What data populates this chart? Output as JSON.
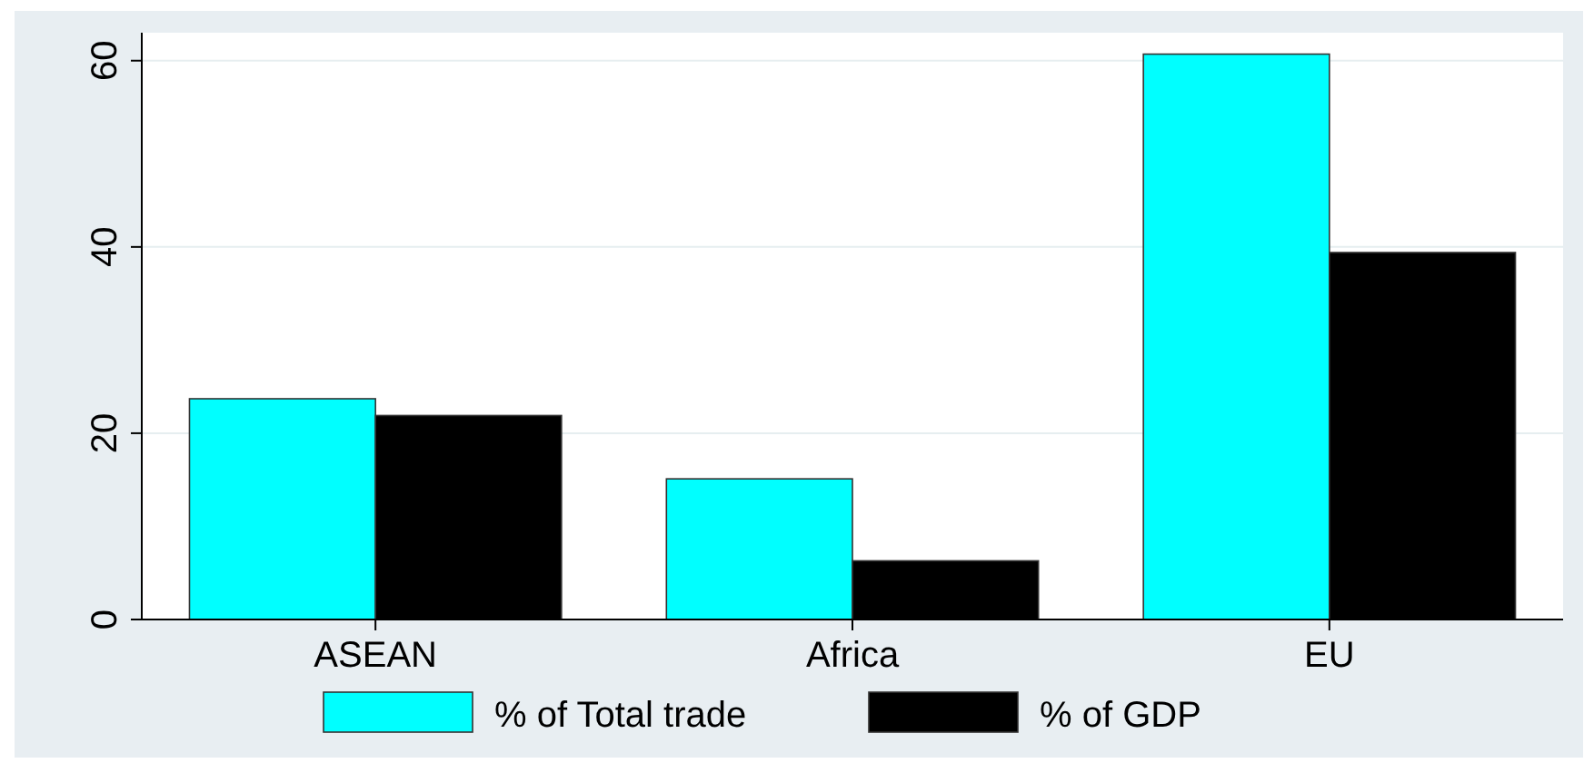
{
  "chart_data": {
    "type": "bar",
    "categories": [
      "ASEAN",
      "Africa",
      "EU"
    ],
    "series": [
      {
        "name": "% of Total trade",
        "color": "#00ffff",
        "values": [
          23.7,
          15.1,
          60.7
        ]
      },
      {
        "name": "% of GDP",
        "color": "#000000",
        "values": [
          21.9,
          6.3,
          39.4
        ]
      }
    ],
    "ylim": [
      0,
      63
    ],
    "yticks": [
      0,
      20,
      40,
      60
    ],
    "grid": "y",
    "legend": "bottom"
  }
}
